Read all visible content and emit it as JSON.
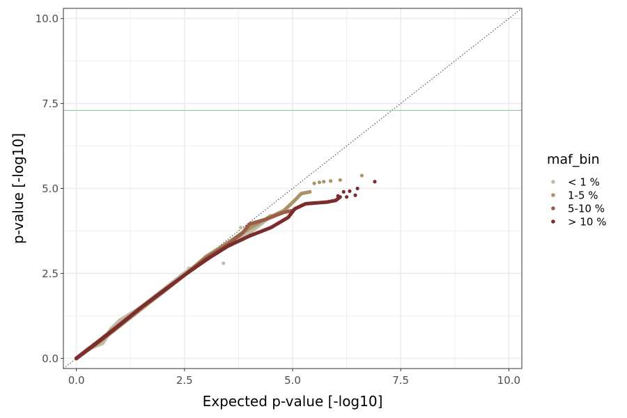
{
  "chart_data": {
    "type": "scatter",
    "xlabel": "Expected p-value [-log10]",
    "ylabel": "p-value [-log10]",
    "xlim": [
      -0.3,
      10.3
    ],
    "ylim": [
      -0.3,
      10.3
    ],
    "x_ticks": [
      0.0,
      2.5,
      5.0,
      7.5,
      10.0
    ],
    "y_ticks": [
      0.0,
      2.5,
      5.0,
      7.5,
      10.0
    ],
    "x_tick_labels": [
      "0.0",
      "2.5",
      "5.0",
      "7.5",
      "10.0"
    ],
    "y_tick_labels": [
      "0.0",
      "2.5",
      "5.0",
      "7.5",
      "10.0"
    ],
    "grid": true,
    "reference_line": {
      "style": "dotted",
      "slope": 1,
      "intercept": 0
    },
    "significance_line": {
      "y": 7.3,
      "color": "#8fbc8f"
    },
    "legend": {
      "title": "maf_bin",
      "position": "right"
    },
    "series": [
      {
        "name": "< 1 %",
        "color": "#c2bba8",
        "curve": [
          [
            0,
            0
          ],
          [
            0.3,
            0.3
          ],
          [
            0.6,
            0.45
          ],
          [
            0.8,
            0.85
          ],
          [
            1.0,
            1.1
          ],
          [
            1.5,
            1.5
          ],
          [
            2.0,
            2.0
          ],
          [
            2.5,
            2.5
          ],
          [
            3.0,
            2.9
          ],
          [
            3.5,
            3.4
          ],
          [
            4.0,
            3.7
          ],
          [
            4.5,
            4.2
          ]
        ],
        "extra_points": [
          [
            3.4,
            2.8
          ],
          [
            3.8,
            3.85
          ],
          [
            4.0,
            3.9
          ],
          [
            3.2,
            3.1
          ],
          [
            2.6,
            2.65
          ]
        ]
      },
      {
        "name": "1-5 %",
        "color": "#a89466",
        "curve": [
          [
            0,
            0
          ],
          [
            0.5,
            0.45
          ],
          [
            1.0,
            0.95
          ],
          [
            1.5,
            1.45
          ],
          [
            2.0,
            1.95
          ],
          [
            2.5,
            2.45
          ],
          [
            3.0,
            3.0
          ],
          [
            3.5,
            3.4
          ],
          [
            3.9,
            3.75
          ],
          [
            4.3,
            4.05
          ],
          [
            4.8,
            4.35
          ],
          [
            5.05,
            4.65
          ],
          [
            5.2,
            4.85
          ],
          [
            5.4,
            4.9
          ]
        ],
        "extra_points": [
          [
            5.5,
            5.15
          ],
          [
            5.62,
            5.18
          ],
          [
            5.72,
            5.2
          ],
          [
            5.88,
            5.22
          ],
          [
            6.1,
            5.25
          ],
          [
            6.6,
            5.38
          ]
        ]
      },
      {
        "name": "5-10 %",
        "color": "#9a5e49",
        "curve": [
          [
            0,
            0
          ],
          [
            0.5,
            0.5
          ],
          [
            1.0,
            1.0
          ],
          [
            1.5,
            1.5
          ],
          [
            2.0,
            1.95
          ],
          [
            2.5,
            2.45
          ],
          [
            3.0,
            2.95
          ],
          [
            3.5,
            3.35
          ],
          [
            3.85,
            3.7
          ],
          [
            4.0,
            3.95
          ],
          [
            4.4,
            4.1
          ],
          [
            4.8,
            4.3
          ],
          [
            5.0,
            4.35
          ]
        ],
        "extra_points": []
      },
      {
        "name": "> 10 %",
        "color": "#7b2d2d",
        "curve": [
          [
            0,
            0
          ],
          [
            0.5,
            0.48
          ],
          [
            1.0,
            0.98
          ],
          [
            1.5,
            1.5
          ],
          [
            2.0,
            1.98
          ],
          [
            2.5,
            2.45
          ],
          [
            3.0,
            2.9
          ],
          [
            3.5,
            3.3
          ],
          [
            4.0,
            3.6
          ],
          [
            4.5,
            3.85
          ],
          [
            4.9,
            4.15
          ],
          [
            5.05,
            4.4
          ],
          [
            5.3,
            4.55
          ],
          [
            5.8,
            4.6
          ],
          [
            6.0,
            4.65
          ],
          [
            6.1,
            4.75
          ]
        ],
        "extra_points": [
          [
            6.05,
            4.78
          ],
          [
            6.18,
            4.9
          ],
          [
            6.32,
            4.92
          ],
          [
            6.5,
            5.0
          ],
          [
            6.25,
            4.75
          ],
          [
            6.45,
            4.8
          ],
          [
            6.9,
            5.2
          ]
        ]
      }
    ]
  }
}
